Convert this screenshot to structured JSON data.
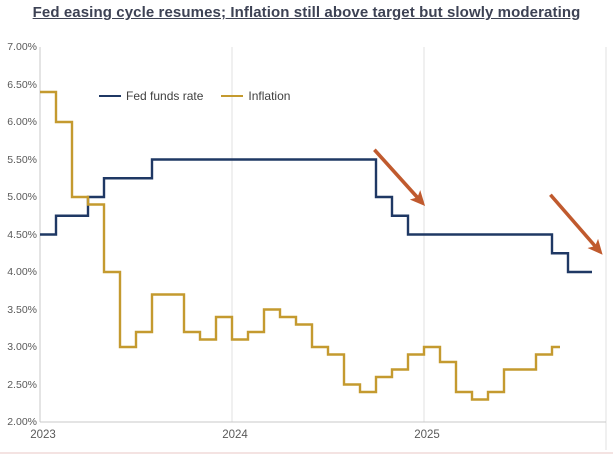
{
  "title": "Fed easing cycle resumes; Inflation still above target but slowly moderating",
  "colors": {
    "fed_funds_line": "#1f3864",
    "inflation_line": "#c49a2f",
    "arrow": "#c05a2e",
    "gridline": "#e0e0e0",
    "axis_line": "#c9c9c9",
    "tick_text": "#595959",
    "title_text": "#3d4254",
    "bottom_rule": "#f4e3e2"
  },
  "chart_data": {
    "type": "line",
    "style": "step-after",
    "frequency": "monthly",
    "x_start": "2023-01",
    "title": "Fed easing cycle resumes; Inflation still above target but slowly moderating",
    "xlabel": "",
    "ylabel": "",
    "ylim": [
      2.0,
      7.0
    ],
    "grid": "vertical-only",
    "legend_position": "top-left-inside",
    "y_ticks": [
      {
        "label": "7.00%",
        "value": 7.0
      },
      {
        "label": "6.50%",
        "value": 6.5
      },
      {
        "label": "6.00%",
        "value": 6.0
      },
      {
        "label": "5.50%",
        "value": 5.5
      },
      {
        "label": "5.00%",
        "value": 5.0
      },
      {
        "label": "4.50%",
        "value": 4.5
      },
      {
        "label": "4.00%",
        "value": 4.0
      },
      {
        "label": "3.50%",
        "value": 3.5
      },
      {
        "label": "3.00%",
        "value": 3.0
      },
      {
        "label": "2.50%",
        "value": 2.5
      },
      {
        "label": "2.00%",
        "value": 2.0
      }
    ],
    "x_ticks": [
      {
        "label": "2023",
        "month_index": 0
      },
      {
        "label": "2024",
        "month_index": 12
      },
      {
        "label": "2025",
        "month_index": 24
      }
    ],
    "series": [
      {
        "name": "Fed funds rate",
        "color": "#1f3864",
        "start_month": "2023-01",
        "values": [
          4.5,
          4.75,
          4.75,
          5.0,
          5.25,
          5.25,
          5.25,
          5.5,
          5.5,
          5.5,
          5.5,
          5.5,
          5.5,
          5.5,
          5.5,
          5.5,
          5.5,
          5.5,
          5.5,
          5.5,
          5.5,
          5.0,
          4.75,
          4.5,
          4.5,
          4.5,
          4.5,
          4.5,
          4.5,
          4.5,
          4.5,
          4.5,
          4.25,
          4.0,
          4.0
        ]
      },
      {
        "name": "Inflation",
        "color": "#c49a2f",
        "start_month": "2023-01",
        "values": [
          6.4,
          6.0,
          5.0,
          4.9,
          4.0,
          3.0,
          3.2,
          3.7,
          3.7,
          3.2,
          3.1,
          3.4,
          3.1,
          3.2,
          3.5,
          3.4,
          3.3,
          3.0,
          2.9,
          2.5,
          2.4,
          2.6,
          2.7,
          2.9,
          3.0,
          2.8,
          2.4,
          2.3,
          2.4,
          2.7,
          2.7,
          2.9,
          3.0
        ]
      }
    ],
    "annotations": {
      "arrows": [
        {
          "x1_month": 20.9,
          "y1_value": 5.63,
          "x2_month": 23.9,
          "y2_value": 4.92
        },
        {
          "x1_month": 31.9,
          "y1_value": 5.03,
          "x2_month": 35.0,
          "y2_value": 4.27
        }
      ],
      "color": "#c05a2e"
    }
  }
}
